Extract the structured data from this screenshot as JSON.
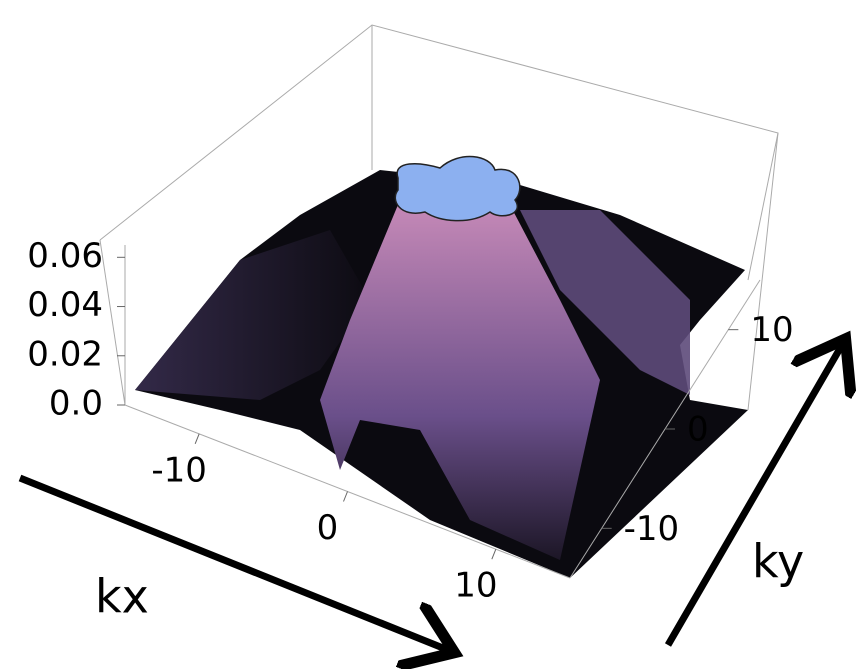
{
  "chart_data": {
    "type": "surface",
    "xlabel": "kx",
    "ylabel": "ky",
    "xlim": [
      -15,
      15
    ],
    "xticks": [
      -10,
      0,
      10
    ],
    "ylim": [
      -15,
      15
    ],
    "yticks": [
      -10,
      0,
      10
    ],
    "zlim": [
      0,
      0.065
    ],
    "zticks": [
      {
        "value": 0,
        "label": "0.0"
      },
      0.02,
      0.04,
      0.06
    ]
  }
}
